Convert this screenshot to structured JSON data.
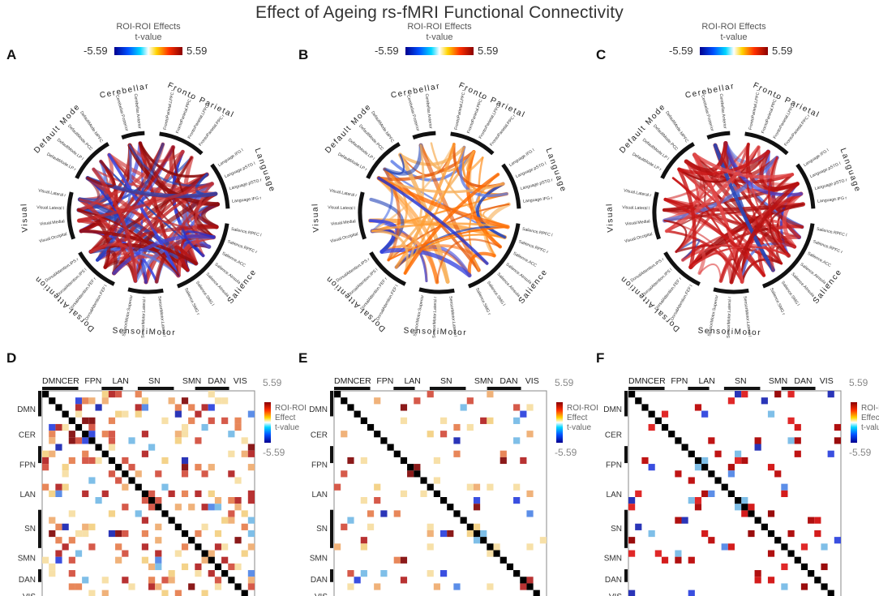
{
  "title": "Effect of Ageing rs-fMRI Functional Connectivity",
  "colors": {
    "neg": "#1a2fd6",
    "pos": "#b41313",
    "diag": "#000000"
  },
  "colorbar": {
    "title": "ROI-ROI Effects",
    "subtitle": "t-value",
    "min": "-5.59",
    "max": "5.59"
  },
  "matrix_colorbar": {
    "line1": "ROI-ROI",
    "line2": "Effect",
    "line3": "t-value",
    "min": "-5.59",
    "max": "5.59"
  },
  "networks": [
    "Fronto Parietal",
    "Language",
    "Salience",
    "SensoriMotor",
    "Dorsal Attention",
    "Visual",
    "Default Mode",
    "Cerebellar"
  ],
  "rois": [
    "FrontoParietal.LPFC l",
    "FrontoParietal.PPC l",
    "FrontoParietal.LPFC r",
    "FrontoParietal.PPC r",
    "Language.IFG l",
    "Language.pSTG l",
    "Language.pSTG r",
    "Language.IFG r",
    "Salience.RPFC l",
    "Salience.RPFC r",
    "Salience.ACC",
    "Salience.AInsula l",
    "Salience.AInsula r",
    "Salience.SMG l",
    "Salience.SMG r",
    "SensoriMotor.Lateral l",
    "SensoriMotor.Lateral r",
    "SensoriMotor.Superior",
    "DorsalAttention.FEF l",
    "DorsalAttention.FEF r",
    "DorsalAttention.IPS l",
    "DorsalAttention.IPS r",
    "Visual.Occipital",
    "Visual.Medial",
    "Visual.Lateral l",
    "Visual.Lateral r",
    "DefaultMode.LP r",
    "DefaultMode.LP l",
    "DefaultMode.PCC",
    "DefaultMode.MPFC",
    "Cerebellar.Posterior",
    "Cerebellar.Anterior"
  ],
  "matrix_top_labels": [
    "DMN",
    "CER",
    "FPN",
    "LAN",
    "SN",
    "SMN",
    "DAN",
    "VIS"
  ],
  "matrix_side_labels": [
    "DMN",
    "CER",
    "FPN",
    "LAN",
    "SN",
    "SMN",
    "DAN",
    "VIS"
  ],
  "panels": [
    {
      "letter": "A",
      "kind": "circle",
      "seed": 11,
      "edges": 120,
      "neg_frac": 0.38,
      "pos_palette": "dark"
    },
    {
      "letter": "B",
      "kind": "circle",
      "seed": 23,
      "edges": 60,
      "neg_frac": 0.2,
      "pos_palette": "warm"
    },
    {
      "letter": "C",
      "kind": "circle",
      "seed": 37,
      "edges": 95,
      "neg_frac": 0.15,
      "pos_palette": "red"
    },
    {
      "letter": "D",
      "kind": "matrix",
      "seed": 5,
      "density": 0.2,
      "neg_frac": 0.22,
      "palette": "warm"
    },
    {
      "letter": "E",
      "kind": "matrix",
      "seed": 17,
      "density": 0.09,
      "neg_frac": 0.18,
      "palette": "warm"
    },
    {
      "letter": "F",
      "kind": "matrix",
      "seed": 29,
      "density": 0.08,
      "neg_frac": 0.2,
      "palette": "red"
    }
  ]
}
